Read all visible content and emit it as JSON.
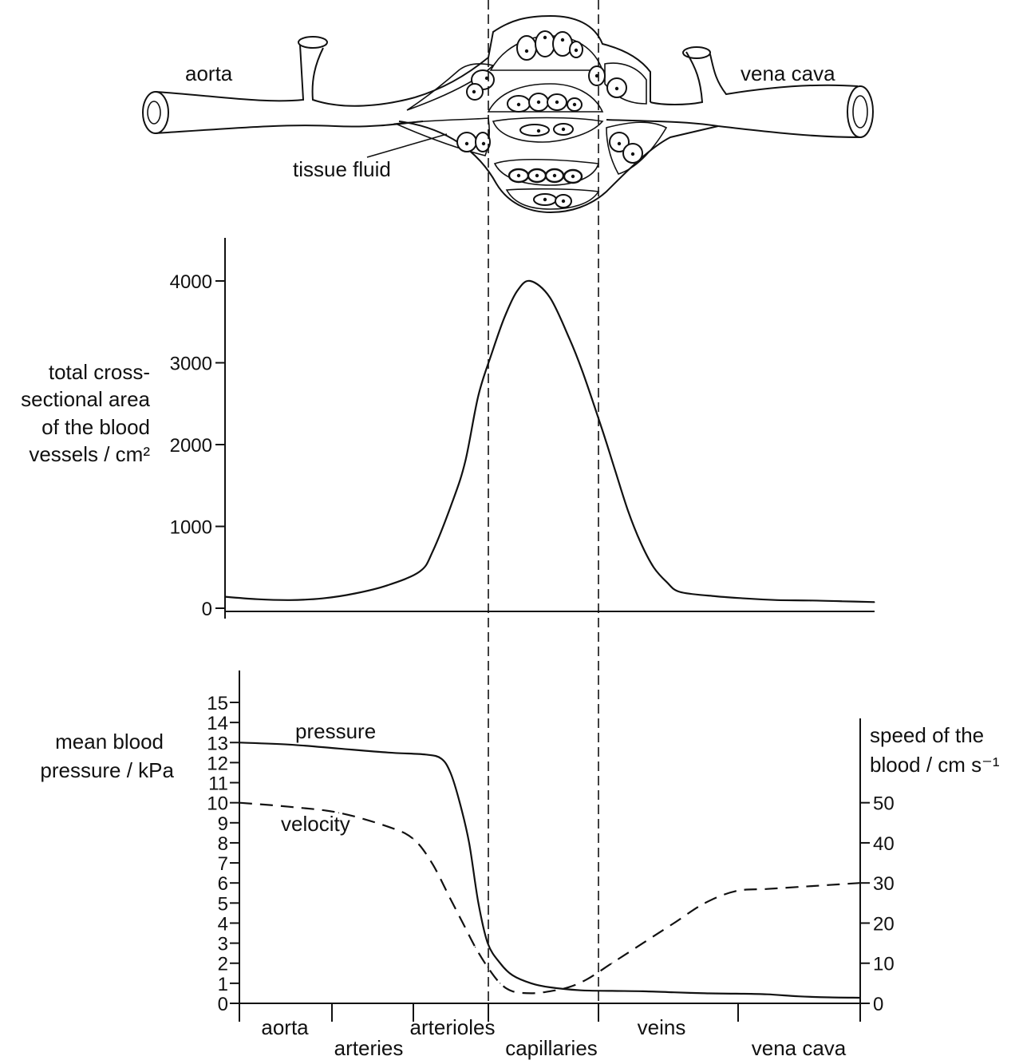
{
  "diagram": {
    "labels": {
      "aorta": "aorta",
      "vena_cava": "vena cava",
      "tissue_fluid": "tissue fluid"
    }
  },
  "chart_data": [
    {
      "type": "line",
      "ylabel": [
        "total cross-",
        "sectional area",
        "of the blood",
        "vessels / cm²"
      ],
      "ylim": [
        0,
        4000
      ],
      "yticks": [
        0,
        1000,
        2000,
        3000,
        4000
      ],
      "x_regions": [
        "aorta",
        "arteries",
        "arterioles",
        "capillaries",
        "veins",
        "vena cava"
      ],
      "series": [
        {
          "x": [
            0,
            0.05,
            0.1,
            0.15,
            0.2,
            0.25,
            0.3,
            0.32,
            0.35,
            0.37,
            0.39,
            0.41,
            0.43,
            0.45,
            0.47,
            0.5,
            0.53,
            0.55,
            0.58,
            0.6,
            0.62,
            0.64,
            0.66,
            0.68,
            0.7,
            0.75,
            0.8,
            0.85,
            0.9,
            0.95,
            1.0
          ],
          "values": [
            140,
            110,
            100,
            120,
            180,
            280,
            450,
            700,
            1300,
            1800,
            2600,
            3100,
            3550,
            3880,
            4000,
            3800,
            3300,
            2900,
            2200,
            1700,
            1200,
            800,
            500,
            320,
            200,
            150,
            120,
            100,
            95,
            85,
            75
          ]
        }
      ]
    },
    {
      "type": "line",
      "ylabel": [
        "mean blood",
        "pressure / kPa"
      ],
      "ylim": [
        0,
        15
      ],
      "yticks": [
        0,
        1,
        2,
        3,
        4,
        5,
        6,
        7,
        8,
        9,
        10,
        11,
        12,
        13,
        14,
        15
      ],
      "y2label": [
        "speed of the",
        "blood / cm s⁻¹"
      ],
      "y2lim": [
        0,
        50
      ],
      "y2ticks": [
        0,
        10,
        20,
        30,
        40,
        50
      ],
      "x_regions": [
        "aorta",
        "arteries",
        "arterioles",
        "capillaries",
        "veins",
        "vena cava"
      ],
      "series": [
        {
          "name": "pressure",
          "axis": "left",
          "x": [
            0,
            0.08,
            0.16,
            0.24,
            0.3,
            0.325,
            0.34,
            0.355,
            0.37,
            0.385,
            0.4,
            0.42,
            0.44,
            0.47,
            0.5,
            0.55,
            0.6,
            0.65,
            0.7,
            0.75,
            0.8,
            0.85,
            0.9,
            0.95,
            1.0
          ],
          "values": [
            13,
            12.9,
            12.7,
            12.5,
            12.4,
            12.2,
            11.5,
            10.0,
            8.0,
            5.0,
            3.0,
            2.0,
            1.4,
            1.0,
            0.8,
            0.65,
            0.62,
            0.6,
            0.55,
            0.5,
            0.48,
            0.45,
            0.35,
            0.3,
            0.28
          ]
        },
        {
          "name": "velocity",
          "axis": "right",
          "x": [
            0,
            0.08,
            0.16,
            0.24,
            0.28,
            0.31,
            0.34,
            0.36,
            0.38,
            0.4,
            0.42,
            0.44,
            0.47,
            0.5,
            0.53,
            0.56,
            0.6,
            0.65,
            0.7,
            0.75,
            0.8,
            0.85,
            0.9,
            0.95,
            1.0
          ],
          "values": [
            50,
            49,
            47.5,
            44,
            41,
            35,
            26,
            20,
            14,
            9,
            5,
            3,
            2.5,
            3,
            4,
            6,
            10,
            15,
            20,
            25,
            28,
            28.5,
            29,
            29.5,
            30
          ]
        }
      ]
    }
  ]
}
